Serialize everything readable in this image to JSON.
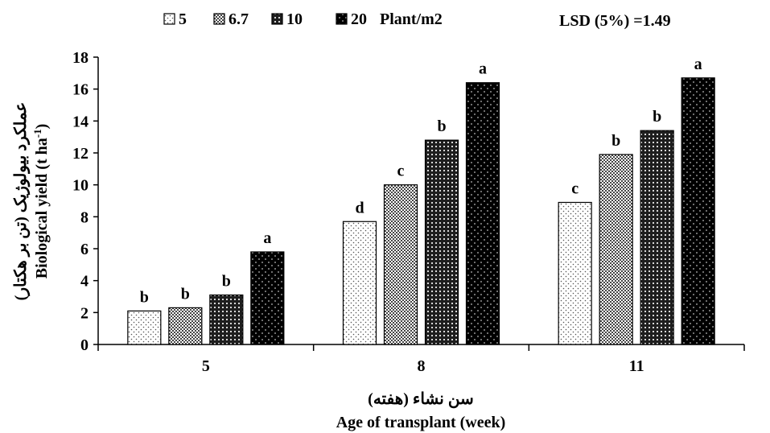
{
  "chart_data": {
    "type": "bar",
    "categories": [
      "5",
      "8",
      "11"
    ],
    "series": [
      {
        "name": "5",
        "values": [
          2.1,
          7.7,
          8.9
        ],
        "letters": [
          "b",
          "d",
          "c"
        ],
        "pattern": "dots-sparse",
        "color": "#000000"
      },
      {
        "name": "6.7",
        "values": [
          2.3,
          10.0,
          11.9
        ],
        "letters": [
          "b",
          "c",
          "b"
        ],
        "pattern": "checker",
        "color": "#000000"
      },
      {
        "name": "10",
        "values": [
          3.1,
          12.8,
          13.4
        ],
        "letters": [
          "b",
          "b",
          "b"
        ],
        "pattern": "dense-dots",
        "color": "#000000"
      },
      {
        "name": "20",
        "values": [
          5.8,
          16.4,
          16.7
        ],
        "letters": [
          "a",
          "a",
          "a"
        ],
        "pattern": "dark-dots",
        "color": "#000000"
      }
    ],
    "legend_unit": "Plant/m2",
    "lsd_label": "LSD (5%) =1.49",
    "ylabel_fa": "عملکرد بیولوژیک (تن بر هکتار)",
    "ylabel_en_main": "Biological yield (t ha",
    "ylabel_en_sup": "-1",
    "ylabel_en_end": ")",
    "xlabel_fa": "سن نشاء (هفته)",
    "xlabel_en": "Age of transplant (week)",
    "ylim": [
      0,
      18
    ],
    "yticks": [
      0,
      2,
      4,
      6,
      8,
      10,
      12,
      14,
      16,
      18
    ],
    "grid": false,
    "legend_position": "top"
  }
}
